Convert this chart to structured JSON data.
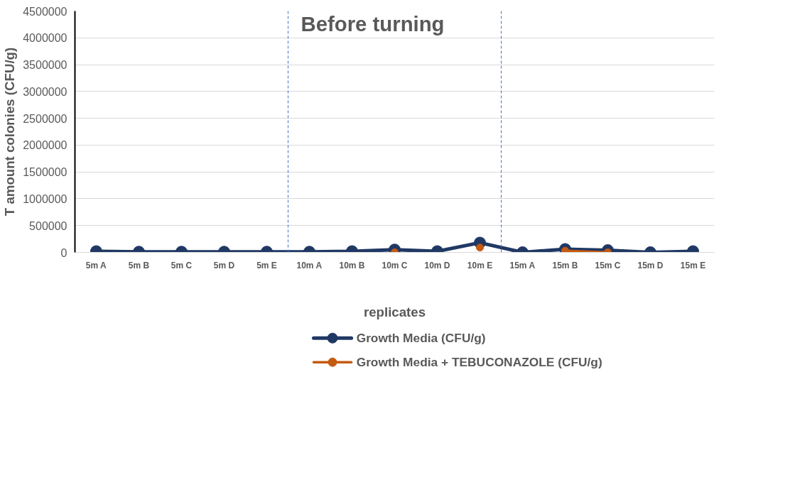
{
  "chart_data": {
    "type": "line",
    "title": "Before turning",
    "xlabel": "replicates",
    "ylabel": "T amount colonies (CFU/g)",
    "categories": [
      "5m A",
      "5m B",
      "5m C",
      "5m D",
      "5m E",
      "10m A",
      "10m B",
      "10m C",
      "10m D",
      "10m E",
      "15m A",
      "15m B",
      "15m C",
      "15m D",
      "15m E"
    ],
    "series": [
      {
        "name": "Growth Media (CFU/g)",
        "color": "#203864",
        "values": [
          20000,
          10000,
          10000,
          10000,
          10000,
          10000,
          20000,
          50000,
          20000,
          180000,
          0,
          60000,
          40000,
          0,
          20000
        ]
      },
      {
        "name": "Growth Media + TEBUCONAZOLE (CFU/g)",
        "color": "#c55a11",
        "values": [
          null,
          null,
          null,
          null,
          null,
          null,
          null,
          0,
          null,
          90000,
          null,
          30000,
          0,
          null,
          null
        ]
      }
    ],
    "ylim": [
      0,
      4500000
    ],
    "yticks": [
      0,
      500000,
      1000000,
      1500000,
      2000000,
      2500000,
      3000000,
      3500000,
      4000000,
      4500000
    ],
    "grid": "y",
    "legend": "bottom",
    "marker": "circle",
    "line_style": "solid"
  }
}
